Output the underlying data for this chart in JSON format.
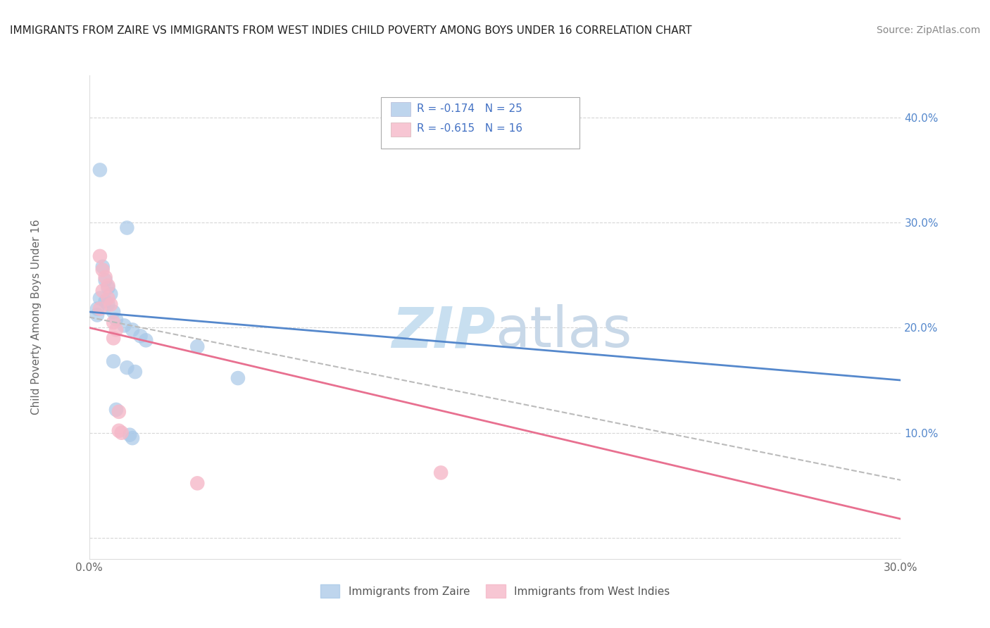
{
  "title": "IMMIGRANTS FROM ZAIRE VS IMMIGRANTS FROM WEST INDIES CHILD POVERTY AMONG BOYS UNDER 16 CORRELATION CHART",
  "source": "Source: ZipAtlas.com",
  "ylabel": "Child Poverty Among Boys Under 16",
  "xlim": [
    0.0,
    0.3
  ],
  "ylim": [
    -0.02,
    0.44
  ],
  "ytick_vals": [
    0.0,
    0.1,
    0.2,
    0.3,
    0.4
  ],
  "xtick_vals": [
    0.0,
    0.1,
    0.2,
    0.3
  ],
  "zaire_points": [
    [
      0.004,
      0.35
    ],
    [
      0.014,
      0.295
    ],
    [
      0.005,
      0.258
    ],
    [
      0.006,
      0.245
    ],
    [
      0.007,
      0.238
    ],
    [
      0.008,
      0.232
    ],
    [
      0.004,
      0.228
    ],
    [
      0.006,
      0.225
    ],
    [
      0.007,
      0.222
    ],
    [
      0.003,
      0.218
    ],
    [
      0.009,
      0.215
    ],
    [
      0.003,
      0.212
    ],
    [
      0.01,
      0.208
    ],
    [
      0.013,
      0.202
    ],
    [
      0.016,
      0.198
    ],
    [
      0.019,
      0.192
    ],
    [
      0.021,
      0.188
    ],
    [
      0.04,
      0.182
    ],
    [
      0.009,
      0.168
    ],
    [
      0.014,
      0.162
    ],
    [
      0.017,
      0.158
    ],
    [
      0.055,
      0.152
    ],
    [
      0.01,
      0.122
    ],
    [
      0.015,
      0.098
    ],
    [
      0.016,
      0.095
    ]
  ],
  "west_indies_points": [
    [
      0.004,
      0.268
    ],
    [
      0.005,
      0.255
    ],
    [
      0.006,
      0.248
    ],
    [
      0.007,
      0.24
    ],
    [
      0.005,
      0.235
    ],
    [
      0.007,
      0.228
    ],
    [
      0.008,
      0.222
    ],
    [
      0.004,
      0.218
    ],
    [
      0.009,
      0.205
    ],
    [
      0.01,
      0.198
    ],
    [
      0.009,
      0.19
    ],
    [
      0.011,
      0.12
    ],
    [
      0.011,
      0.102
    ],
    [
      0.012,
      0.1
    ],
    [
      0.13,
      0.062
    ],
    [
      0.04,
      0.052
    ]
  ],
  "zaire_R": -0.174,
  "zaire_N": 25,
  "west_indies_R": -0.615,
  "west_indies_N": 16,
  "zaire_color": "#a8c8e8",
  "west_indies_color": "#f5b8c8",
  "zaire_line_color": "#5588cc",
  "west_indies_line_color": "#e87090",
  "trendline_dashed_color": "#bbbbbb",
  "background_color": "#ffffff",
  "grid_color": "#cccccc",
  "legend_text_color": "#4472c4",
  "bottom_legend": [
    "Immigrants from Zaire",
    "Immigrants from West Indies"
  ],
  "watermark_zip_color": "#c8dff0",
  "watermark_atlas_color": "#c8d8e8"
}
